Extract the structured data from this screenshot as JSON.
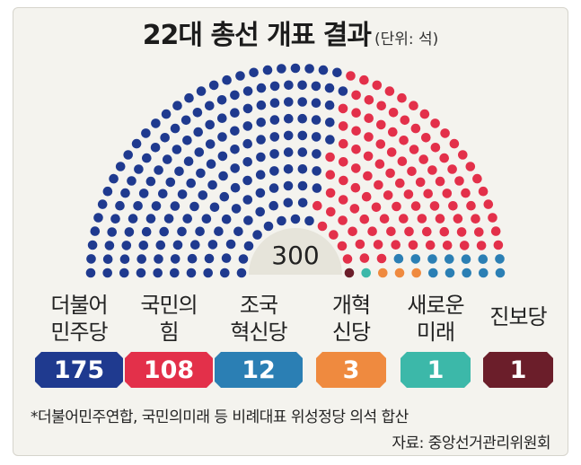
{
  "header": {
    "title": "22대 총선 개표 결과",
    "unit": "(단위: 석)"
  },
  "chart_data": {
    "type": "parliament",
    "total": 300,
    "total_label": "300",
    "series": [
      {
        "name": "더불어\n민주당",
        "value": 175,
        "label": "175",
        "color": "#1f3a8f"
      },
      {
        "name": "국민의\n힘",
        "value": 108,
        "label": "108",
        "color": "#e3304a"
      },
      {
        "name": "조국\n혁신당",
        "value": 12,
        "label": "12",
        "color": "#2b7fb4"
      },
      {
        "name": "개혁\n신당",
        "value": 3,
        "label": "3",
        "color": "#ef8a3f"
      },
      {
        "name": "새로운\n미래",
        "value": 1,
        "label": "1",
        "color": "#3cb8a9"
      },
      {
        "name": "진보당",
        "value": 1,
        "label": "1",
        "color": "#6b1e2a"
      }
    ]
  },
  "footnote": "*더불어민주연합, 국민의미래 등 비례대표 위성정당 의석 합산",
  "source": "자료: 중앙선거관리위원회"
}
